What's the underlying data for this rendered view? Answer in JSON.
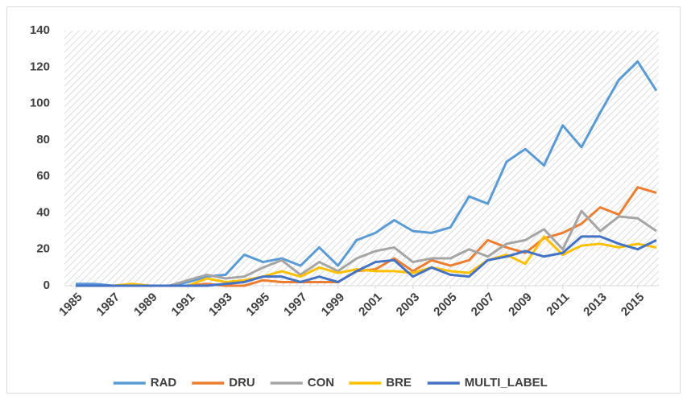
{
  "chart_data": {
    "type": "line",
    "x": [
      1985,
      1986,
      1987,
      1988,
      1989,
      1990,
      1991,
      1992,
      1993,
      1994,
      1995,
      1996,
      1997,
      1998,
      1999,
      2000,
      2001,
      2002,
      2003,
      2004,
      2005,
      2006,
      2007,
      2008,
      2009,
      2010,
      2011,
      2012,
      2013,
      2014,
      2015,
      2016
    ],
    "xlim": [
      1985,
      2016
    ],
    "xticks": [
      1985,
      1987,
      1989,
      1991,
      1993,
      1995,
      1997,
      1999,
      2001,
      2003,
      2005,
      2007,
      2009,
      2011,
      2013,
      2015
    ],
    "ylim": [
      0,
      140
    ],
    "yticks": [
      0,
      20,
      40,
      60,
      80,
      100,
      120,
      140
    ],
    "grid": false,
    "legend": "bottom",
    "series": [
      {
        "name": "RAD",
        "color": "#5b9bd5",
        "values": [
          1,
          1,
          0,
          0,
          0,
          0,
          2,
          5,
          6,
          17,
          13,
          15,
          11,
          21,
          11,
          25,
          29,
          36,
          30,
          29,
          32,
          49,
          45,
          68,
          75,
          66,
          88,
          76,
          95,
          113,
          123,
          107
        ]
      },
      {
        "name": "DRU",
        "color": "#ed7d31",
        "values": [
          0,
          0,
          0,
          0,
          0,
          0,
          0,
          1,
          0,
          0,
          3,
          2,
          2,
          2,
          2,
          8,
          9,
          15,
          8,
          14,
          11,
          14,
          25,
          21,
          18,
          26,
          29,
          34,
          43,
          39,
          54,
          51
        ]
      },
      {
        "name": "CON",
        "color": "#a5a5a5",
        "values": [
          0,
          0,
          0,
          0,
          0,
          0,
          3,
          6,
          4,
          5,
          10,
          14,
          6,
          13,
          8,
          15,
          19,
          21,
          13,
          15,
          15,
          20,
          16,
          23,
          25,
          31,
          20,
          41,
          30,
          38,
          37,
          30
        ]
      },
      {
        "name": "BRE",
        "color": "#ffc000",
        "values": [
          0,
          0,
          0,
          1,
          0,
          0,
          0,
          4,
          2,
          3,
          5,
          8,
          5,
          10,
          7,
          9,
          8,
          8,
          7,
          10,
          8,
          7,
          14,
          17,
          12,
          27,
          17,
          22,
          23,
          21,
          23,
          21
        ]
      },
      {
        "name": "MULTI_LABEL",
        "color": "#4472c4",
        "values": [
          0,
          0,
          0,
          0,
          0,
          0,
          0,
          0,
          1,
          2,
          5,
          5,
          2,
          5,
          2,
          8,
          13,
          14,
          5,
          10,
          6,
          5,
          14,
          16,
          19,
          16,
          18,
          27,
          27,
          23,
          20,
          25
        ]
      }
    ]
  }
}
